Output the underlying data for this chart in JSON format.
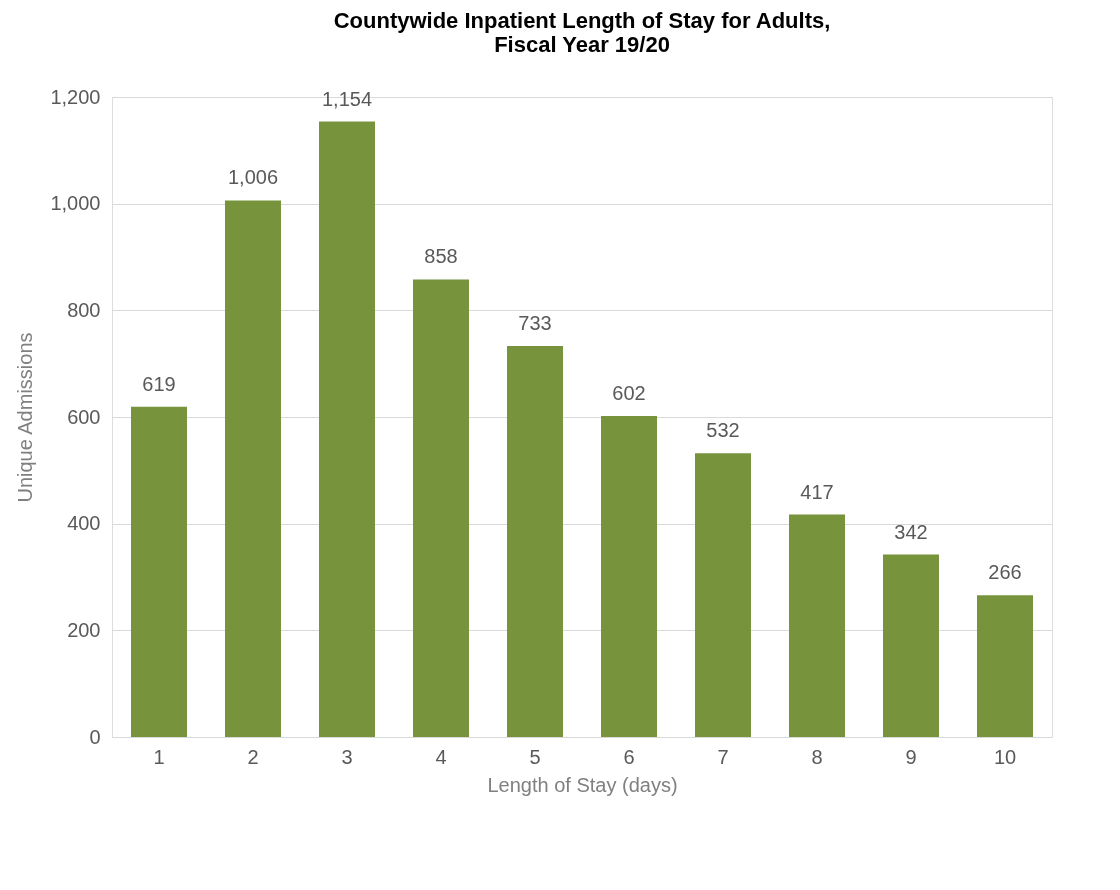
{
  "chart_data": {
    "type": "bar",
    "title": "Countywide Inpatient Length of Stay for Adults,\nFiscal Year 19/20",
    "xlabel": "Length of Stay (days)",
    "ylabel": "Unique Admissions",
    "categories": [
      "1",
      "2",
      "3",
      "4",
      "5",
      "6",
      "7",
      "8",
      "9",
      "10"
    ],
    "values": [
      619,
      1006,
      1154,
      858,
      733,
      602,
      532,
      417,
      342,
      266
    ],
    "value_labels": [
      "619",
      "1,006",
      "1,154",
      "858",
      "733",
      "602",
      "532",
      "417",
      "342",
      "266"
    ],
    "color": "#77933c",
    "ylim": [
      0,
      1200
    ],
    "yticks": [
      0,
      200,
      400,
      600,
      800,
      {
        "value": 1000,
        "label": "1,000"
      },
      {
        "value": 1200,
        "label": "1,200"
      }
    ],
    "grid": "y"
  }
}
